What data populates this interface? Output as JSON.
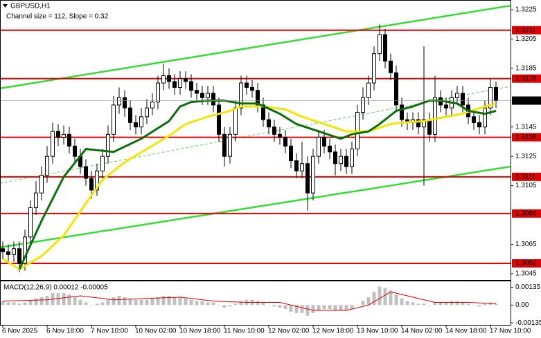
{
  "chart_data": [
    {
      "type": "candlestick",
      "title": "GBPUSD,H1",
      "subtitle": "Channel size = 112, Slope = 0.32",
      "candles": [
        [
          1.3062,
          1.3067,
          1.3055,
          1.306
        ],
        [
          1.306,
          1.3065,
          1.3053,
          1.3058
        ],
        [
          1.3058,
          1.3067,
          1.3053,
          1.3062
        ],
        [
          1.3062,
          1.3067,
          1.3046,
          1.3052
        ],
        [
          1.3052,
          1.3075,
          1.3047,
          1.307
        ],
        [
          1.307,
          1.3095,
          1.3065,
          1.309
        ],
        [
          1.309,
          1.3108,
          1.3085,
          1.31
        ],
        [
          1.31,
          1.3118,
          1.3095,
          1.3112
        ],
        [
          1.3112,
          1.3132,
          1.3107,
          1.3125
        ],
        [
          1.3125,
          1.3148,
          1.312,
          1.3142
        ],
        [
          1.3142,
          1.3147,
          1.3132,
          1.3138
        ],
        [
          1.3138,
          1.3146,
          1.3133,
          1.314
        ],
        [
          1.314,
          1.3145,
          1.3127,
          1.3132
        ],
        [
          1.3132,
          1.3137,
          1.312,
          1.3125
        ],
        [
          1.3125,
          1.313,
          1.3113,
          1.3118
        ],
        [
          1.3118,
          1.3123,
          1.3105,
          1.311
        ],
        [
          1.311,
          1.3115,
          1.3096,
          1.3102
        ],
        [
          1.3102,
          1.312,
          1.3098,
          1.3115
        ],
        [
          1.3115,
          1.313,
          1.311,
          1.3125
        ],
        [
          1.3125,
          1.3146,
          1.312,
          1.314
        ],
        [
          1.314,
          1.3166,
          1.3135,
          1.316
        ],
        [
          1.316,
          1.3172,
          1.3154,
          1.3165
        ],
        [
          1.3165,
          1.317,
          1.3152,
          1.3158
        ],
        [
          1.3158,
          1.3163,
          1.3143,
          1.3148
        ],
        [
          1.3148,
          1.3153,
          1.314,
          1.3145
        ],
        [
          1.3145,
          1.3158,
          1.314,
          1.3152
        ],
        [
          1.3152,
          1.3164,
          1.3147,
          1.3158
        ],
        [
          1.3158,
          1.3168,
          1.3153,
          1.3162
        ],
        [
          1.3162,
          1.318,
          1.3157,
          1.3175
        ],
        [
          1.3175,
          1.3188,
          1.317,
          1.318
        ],
        [
          1.318,
          1.3185,
          1.3171,
          1.3176
        ],
        [
          1.3176,
          1.3181,
          1.3167,
          1.3172
        ],
        [
          1.3172,
          1.3183,
          1.3167,
          1.3178
        ],
        [
          1.3178,
          1.3183,
          1.3171,
          1.3176
        ],
        [
          1.3176,
          1.3181,
          1.3165,
          1.317
        ],
        [
          1.317,
          1.3175,
          1.3163,
          1.3168
        ],
        [
          1.3168,
          1.3173,
          1.316,
          1.3165
        ],
        [
          1.3165,
          1.3173,
          1.316,
          1.3168
        ],
        [
          1.3168,
          1.3173,
          1.3155,
          1.316
        ],
        [
          1.316,
          1.3165,
          1.3135,
          1.314
        ],
        [
          1.314,
          1.3145,
          1.3118,
          1.3125
        ],
        [
          1.3125,
          1.3145,
          1.312,
          1.314
        ],
        [
          1.314,
          1.3163,
          1.3135,
          1.3158
        ],
        [
          1.3158,
          1.318,
          1.3153,
          1.3175
        ],
        [
          1.3175,
          1.318,
          1.3167,
          1.3172
        ],
        [
          1.3172,
          1.3177,
          1.3165,
          1.317
        ],
        [
          1.317,
          1.3175,
          1.3155,
          1.316
        ],
        [
          1.316,
          1.3165,
          1.3145,
          1.315
        ],
        [
          1.315,
          1.3155,
          1.314,
          1.3145
        ],
        [
          1.3145,
          1.315,
          1.3135,
          1.314
        ],
        [
          1.314,
          1.3145,
          1.3133,
          1.3138
        ],
        [
          1.3138,
          1.3143,
          1.3127,
          1.3132
        ],
        [
          1.3132,
          1.3137,
          1.3117,
          1.3122
        ],
        [
          1.3122,
          1.3127,
          1.311,
          1.3115
        ],
        [
          1.3115,
          1.3135,
          1.311,
          1.312
        ],
        [
          1.312,
          1.3125,
          1.3088,
          1.31
        ],
        [
          1.31,
          1.313,
          1.3095,
          1.3125
        ],
        [
          1.3125,
          1.3143,
          1.312,
          1.3138
        ],
        [
          1.3138,
          1.3143,
          1.3127,
          1.3132
        ],
        [
          1.3132,
          1.3137,
          1.3123,
          1.3128
        ],
        [
          1.3128,
          1.3133,
          1.3112,
          1.312
        ],
        [
          1.312,
          1.313,
          1.3115,
          1.3125
        ],
        [
          1.3125,
          1.313,
          1.3113,
          1.3118
        ],
        [
          1.3118,
          1.3135,
          1.3113,
          1.313
        ],
        [
          1.313,
          1.316,
          1.3125,
          1.3155
        ],
        [
          1.3155,
          1.3172,
          1.315,
          1.3165
        ],
        [
          1.3165,
          1.318,
          1.316,
          1.3175
        ],
        [
          1.3175,
          1.32,
          1.317,
          1.3195
        ],
        [
          1.3195,
          1.3215,
          1.319,
          1.3208
        ],
        [
          1.3208,
          1.3212,
          1.3185,
          1.319
        ],
        [
          1.319,
          1.3195,
          1.3177,
          1.3182
        ],
        [
          1.3182,
          1.3187,
          1.3155,
          1.316
        ],
        [
          1.316,
          1.3165,
          1.3145,
          1.315
        ],
        [
          1.315,
          1.3155,
          1.3143,
          1.3148
        ],
        [
          1.3148,
          1.3155,
          1.3143,
          1.315
        ],
        [
          1.315,
          1.3155,
          1.314,
          1.3145
        ],
        [
          1.3145,
          1.32,
          1.3105,
          1.315
        ],
        [
          1.315,
          1.3155,
          1.3135,
          1.314
        ],
        [
          1.314,
          1.318,
          1.3135,
          1.3165
        ],
        [
          1.3165,
          1.317,
          1.3155,
          1.316
        ],
        [
          1.316,
          1.3165,
          1.3153,
          1.3158
        ],
        [
          1.3158,
          1.317,
          1.3153,
          1.3165
        ],
        [
          1.3165,
          1.3173,
          1.316,
          1.3168
        ],
        [
          1.3168,
          1.3173,
          1.3155,
          1.316
        ],
        [
          1.316,
          1.3165,
          1.3147,
          1.3152
        ],
        [
          1.3152,
          1.3157,
          1.3143,
          1.3148
        ],
        [
          1.3148,
          1.3153,
          1.314,
          1.3145
        ],
        [
          1.3145,
          1.3163,
          1.314,
          1.3158
        ],
        [
          1.3158,
          1.3178,
          1.3153,
          1.3172
        ],
        [
          1.3172,
          1.3176,
          1.3158,
          1.3163
        ]
      ],
      "up_color": "#ffffff",
      "down_color": "#000000",
      "xlim": [
        -0.5,
        91.625
      ],
      "xticks": [
        {
          "value": 0,
          "label": "6 Nov 2025"
        },
        {
          "value": 8,
          "label": "6 Nov 18:00"
        },
        {
          "value": 16,
          "label": "7 Nov 10:00"
        },
        {
          "value": 24,
          "label": "10 Nov 02:00"
        },
        {
          "value": 32,
          "label": "10 Nov 18:00"
        },
        {
          "value": 40,
          "label": "11 Nov 10:00"
        },
        {
          "value": 48,
          "label": "12 Nov 02:00"
        },
        {
          "value": 56,
          "label": "12 Nov 18:00"
        },
        {
          "value": 64,
          "label": "13 Nov 10:00"
        },
        {
          "value": 72,
          "label": "14 Nov 02:00"
        },
        {
          "value": 80,
          "label": "14 Nov 18:00"
        },
        {
          "value": 88,
          "label": "17 Nov 10:00"
        }
      ],
      "ylim": [
        1.30407,
        1.32316
      ],
      "yticks": [
        1.3225,
        1.3205,
        1.3185,
        1.3145,
        1.3125,
        1.3105,
        1.3065,
        1.3045
      ],
      "lines": [
        {
          "color": "#f2e600",
          "x": [
            0,
            3,
            7,
            11,
            15,
            18,
            22,
            26,
            30,
            33,
            37,
            41,
            43,
            47,
            51,
            54,
            58,
            62,
            66,
            70,
            72,
            76,
            80,
            83,
            87,
            89
          ],
          "values": [
            1.3055,
            1.3048,
            1.3057,
            1.3071,
            1.3093,
            1.3109,
            1.3121,
            1.313,
            1.3139,
            1.3147,
            1.3152,
            1.3156,
            1.3159,
            1.3159,
            1.3157,
            1.3152,
            1.3147,
            1.3142,
            1.3142,
            1.3147,
            1.3148,
            1.3149,
            1.3152,
            1.3154,
            1.3159,
            1.3161
          ]
        },
        {
          "color": "#0b6e0b",
          "x": [
            3,
            7,
            11,
            15,
            20,
            25,
            30,
            32,
            34,
            37,
            40,
            43,
            46,
            50,
            53,
            57,
            61,
            63,
            66,
            68,
            71,
            74,
            77,
            79,
            82,
            84,
            87,
            89
          ],
          "values": [
            1.3048,
            1.3081,
            1.3111,
            1.313,
            1.3128,
            1.3137,
            1.3149,
            1.3159,
            1.3162,
            1.3163,
            1.3163,
            1.3161,
            1.3161,
            1.3154,
            1.3147,
            1.3142,
            1.3137,
            1.314,
            1.3142,
            1.3147,
            1.3156,
            1.3159,
            1.3163,
            1.3163,
            1.3161,
            1.3156,
            1.3154,
            1.3156
          ]
        }
      ],
      "channel": [
        {
          "color": "#33dd33",
          "x": [
            -0.5,
            91.625
          ],
          "values": [
            1.31713,
            1.32278
          ]
        },
        {
          "color": "#33dd33",
          "x": [
            -0.5,
            91.625
          ],
          "values": [
            1.30629,
            1.3118
          ]
        },
        {
          "color": "#66cc66",
          "dashed": true,
          "x": [
            -0.5,
            91.625
          ],
          "values": [
            1.31067,
            1.31727
          ]
        }
      ],
      "levels": [
        1.3211,
        1.3178,
        1.3138,
        1.3111,
        1.3086,
        1.3052
      ],
      "level_color": "#e00000",
      "last_price": 1.3163
    },
    {
      "type": "macd",
      "title": "MACD(12,26,9) 0.00012 -0.00005",
      "histogram": [
        0.0003,
        0.0002,
        0.0002,
        0.0001,
        0.0002,
        0.0004,
        0.0005,
        0.0006,
        0.0007,
        0.0009,
        0.0009,
        0.0009,
        0.0008,
        0.0006,
        0.0004,
        0.0002,
        0.0,
        0.0001,
        0.0002,
        0.0004,
        0.0006,
        0.0007,
        0.0006,
        0.0005,
        0.0004,
        0.0004,
        0.0004,
        0.0005,
        0.0006,
        0.0007,
        0.0007,
        0.0006,
        0.0006,
        0.0005,
        0.0004,
        0.0003,
        0.0003,
        0.0002,
        0.0002,
        0.0,
        -0.0002,
        -0.0001,
        0.0001,
        0.0003,
        0.0004,
        0.0004,
        0.0003,
        0.0002,
        0.0,
        -0.0001,
        -0.0002,
        -0.0003,
        -0.0005,
        -0.0006,
        -0.0006,
        -0.0008,
        -0.0006,
        -0.0004,
        -0.0003,
        -0.0003,
        -0.0004,
        -0.0004,
        -0.0004,
        -0.0003,
        0.0,
        0.0003,
        0.0006,
        0.001,
        0.0014,
        0.0013,
        0.0011,
        0.0008,
        0.0005,
        0.0003,
        0.0002,
        0.0001,
        0.0001,
        0.0,
        0.0002,
        0.0002,
        0.0002,
        0.0003,
        0.0003,
        0.0002,
        0.0001,
        0.0,
        -0.0001,
        0.0001,
        0.0002,
        0.0001
      ],
      "histogram_color": "#c0c0c0",
      "signal": {
        "color": "#e00000",
        "x": [
          0,
          8,
          14,
          20,
          26,
          32,
          38,
          44,
          50,
          56,
          62,
          66,
          70,
          74,
          78,
          84,
          89
        ],
        "values": [
          0.0003,
          0.0004,
          0.0007,
          0.0004,
          0.0005,
          0.0006,
          0.0003,
          0.0002,
          0.0002,
          -0.0004,
          -0.0004,
          0.0,
          0.001,
          0.0006,
          0.0002,
          0.0002,
          0.0001
        ]
      },
      "ylim": [
        -0.0015,
        0.00185
      ],
      "yticks": [
        0.00135,
        {
          "value": 0,
          "label": "0.00"
        },
        -0.00135
      ]
    }
  ]
}
